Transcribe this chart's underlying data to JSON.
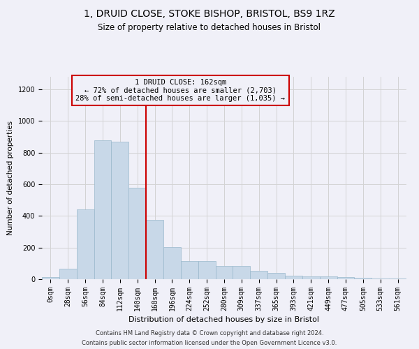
{
  "title1": "1, DRUID CLOSE, STOKE BISHOP, BRISTOL, BS9 1RZ",
  "title2": "Size of property relative to detached houses in Bristol",
  "xlabel": "Distribution of detached houses by size in Bristol",
  "ylabel": "Number of detached properties",
  "footnote1": "Contains HM Land Registry data © Crown copyright and database right 2024.",
  "footnote2": "Contains public sector information licensed under the Open Government Licence v3.0.",
  "annotation_line1": "1 DRUID CLOSE: 162sqm",
  "annotation_line2": "← 72% of detached houses are smaller (2,703)",
  "annotation_line3": "28% of semi-detached houses are larger (1,035) →",
  "bar_color": "#c8d8e8",
  "bar_edge_color": "#9ab8cc",
  "vline_color": "#cc0000",
  "vline_x": 5.5,
  "annotation_box_color": "#cc0000",
  "ylim": [
    0,
    1280
  ],
  "yticks": [
    0,
    200,
    400,
    600,
    800,
    1000,
    1200
  ],
  "bins": [
    "0sqm",
    "28sqm",
    "56sqm",
    "84sqm",
    "112sqm",
    "140sqm",
    "168sqm",
    "196sqm",
    "224sqm",
    "252sqm",
    "280sqm",
    "309sqm",
    "337sqm",
    "365sqm",
    "393sqm",
    "421sqm",
    "449sqm",
    "477sqm",
    "505sqm",
    "533sqm",
    "561sqm"
  ],
  "values": [
    12,
    67,
    440,
    880,
    870,
    580,
    375,
    205,
    115,
    115,
    85,
    85,
    52,
    40,
    22,
    18,
    18,
    12,
    8,
    5,
    5
  ],
  "background_color": "#f0f0f8",
  "title1_fontsize": 10,
  "title2_fontsize": 8.5,
  "xlabel_fontsize": 8,
  "ylabel_fontsize": 7.5,
  "tick_fontsize": 7,
  "annotation_fontsize": 7.5,
  "footnote_fontsize": 6
}
